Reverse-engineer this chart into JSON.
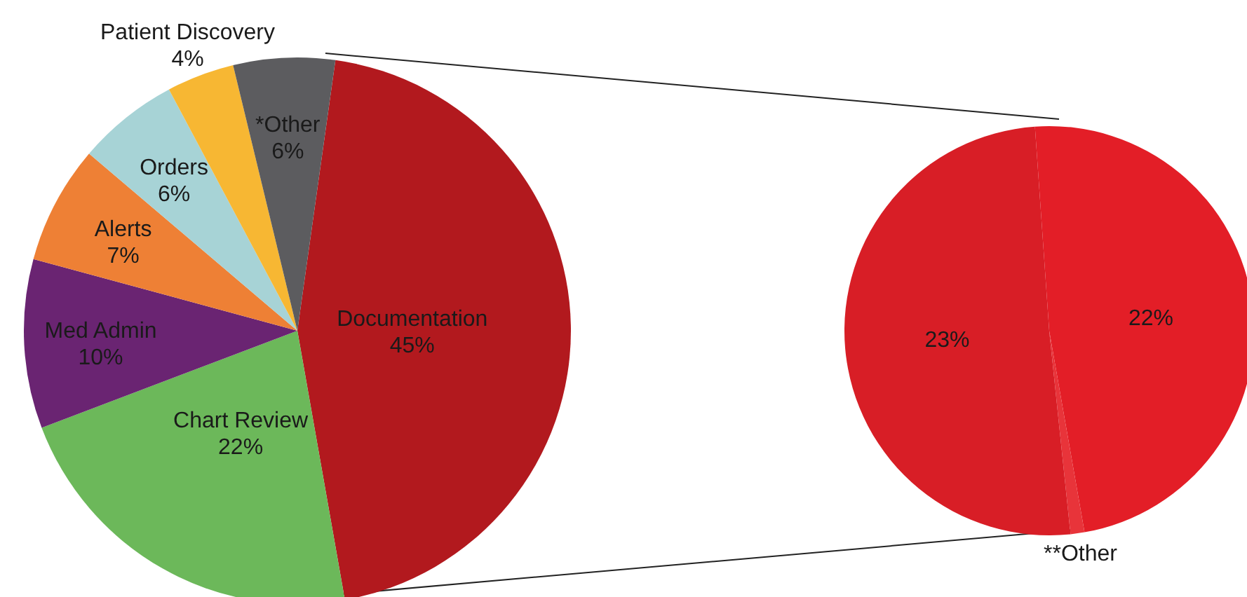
{
  "chart_data": [
    {
      "type": "pie",
      "categories": [
        "Documentation",
        "Chart Review",
        "Med Admin",
        "Alerts",
        "Orders",
        "Patient Discovery",
        "*Other"
      ],
      "values": [
        45,
        22,
        10,
        7,
        6,
        4,
        6
      ],
      "value_labels": [
        "45%",
        "22%",
        "10%",
        "7%",
        "6%",
        "4%",
        "6%"
      ],
      "colors": [
        "#b2191e",
        "#6cb85a",
        "#6a2472",
        "#ee8035",
        "#a7d3d6",
        "#f7b733",
        "#5c5c5f"
      ]
    },
    {
      "type": "pie",
      "categories": [
        null,
        "**Other",
        null
      ],
      "values": [
        22,
        0.5,
        23
      ],
      "value_labels": [
        "22%",
        null,
        "23%"
      ],
      "colors": [
        "#e31e27",
        "#e8343a",
        "#d81e26"
      ]
    }
  ]
}
